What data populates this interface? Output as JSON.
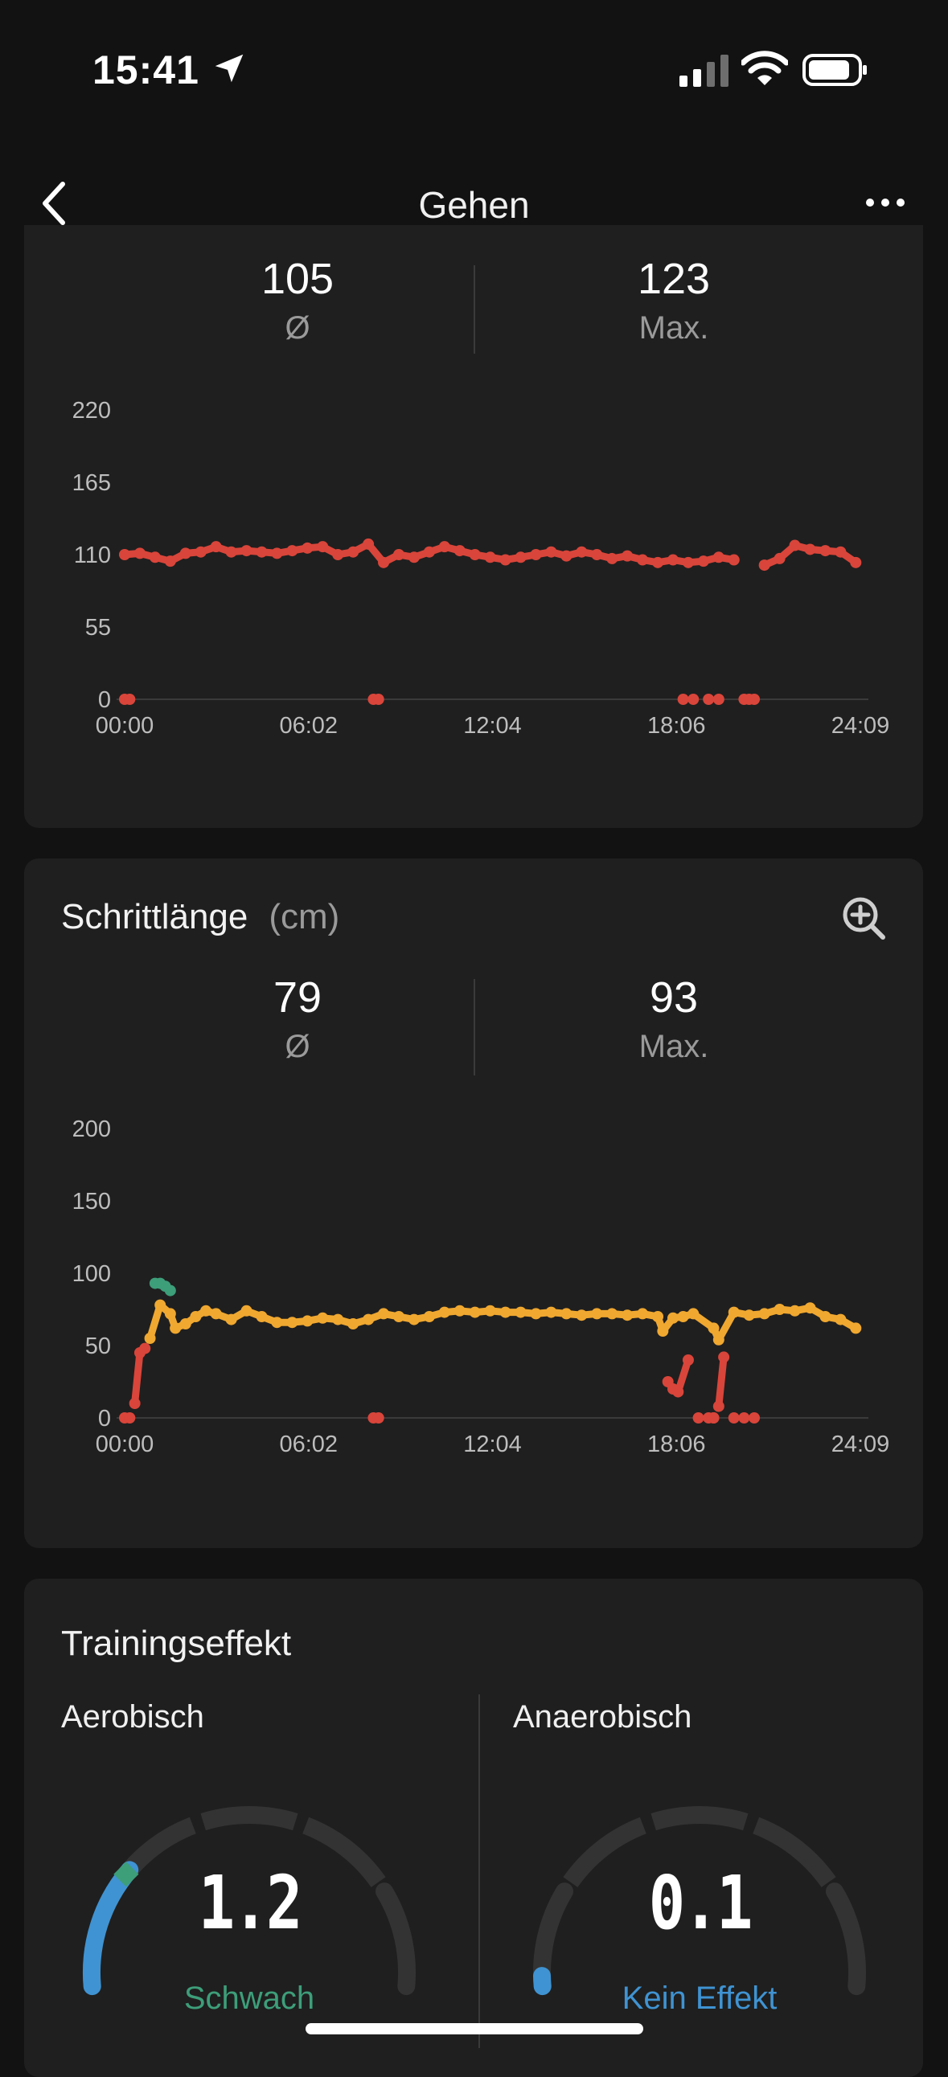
{
  "status_bar": {
    "time": "15:41"
  },
  "nav": {
    "title": "Gehen"
  },
  "cadence_card": {
    "avg_value": "105",
    "avg_label": "Ø",
    "max_value": "123",
    "max_label": "Max.",
    "chart_data": {
      "type": "scatter",
      "title": "",
      "x_ticks": [
        "00:00",
        "06:02",
        "12:04",
        "18:06",
        "24:09"
      ],
      "y_ticks": [
        "220",
        "165",
        "110",
        "55",
        "0"
      ],
      "ylim": [
        0,
        220
      ],
      "xlim_minutes": [
        0,
        1449
      ],
      "color": "#d9453a",
      "series": [
        {
          "values_x_min": [
            0,
            30,
            60,
            90,
            120,
            150,
            180,
            210,
            240,
            270,
            300,
            330,
            360,
            390,
            420,
            450,
            480,
            510,
            540,
            570,
            600,
            630,
            660,
            690,
            720,
            750,
            780,
            810,
            840,
            870,
            900,
            930,
            960,
            990,
            1020,
            1050,
            1080,
            1110,
            1140,
            1170,
            1200,
            1230,
            1260,
            1290,
            1320,
            1350,
            1380,
            1410,
            1440
          ],
          "values_y": [
            110,
            111,
            108,
            105,
            111,
            112,
            116,
            112,
            113,
            112,
            111,
            113,
            115,
            116,
            110,
            112,
            118,
            104,
            110,
            108,
            112,
            116,
            113,
            110,
            108,
            106,
            108,
            110,
            112,
            109,
            112,
            110,
            107,
            109,
            106,
            104,
            106,
            104,
            105,
            108,
            106,
            0,
            102,
            107,
            117,
            114,
            113,
            112,
            104
          ]
        },
        {
          "values_x_min": [
            0,
            10,
            490,
            500,
            1100,
            1120,
            1150,
            1170,
            1220,
            1240
          ],
          "values_y": [
            0,
            0,
            0,
            0,
            0,
            0,
            0,
            0,
            0,
            0
          ]
        }
      ]
    }
  },
  "stride_card": {
    "title": "Schrittlänge",
    "unit": "(cm)",
    "avg_value": "79",
    "avg_label": "Ø",
    "max_value": "93",
    "max_label": "Max.",
    "chart_data": {
      "type": "scatter",
      "title": "",
      "x_ticks": [
        "00:00",
        "06:02",
        "12:04",
        "18:06",
        "24:09"
      ],
      "y_ticks": [
        "200",
        "150",
        "100",
        "50",
        "0"
      ],
      "ylim": [
        0,
        200
      ],
      "xlim_minutes": [
        0,
        1449
      ],
      "colors": {
        "low": "#d9453a",
        "mid": "#f0a830",
        "high": "#3d9e7a"
      },
      "series": [
        {
          "name": "high",
          "values_x_min": [
            60,
            70,
            80,
            90
          ],
          "values_y": [
            93,
            93,
            91,
            88
          ]
        },
        {
          "name": "low",
          "values_x_min": [
            0,
            10,
            20,
            30,
            40,
            490,
            500,
            1070,
            1080,
            1090,
            1110,
            1130,
            1150,
            1160,
            1170,
            1180,
            1200,
            1220,
            1240,
            1160
          ],
          "values_y": [
            0,
            0,
            10,
            45,
            48,
            0,
            0,
            25,
            20,
            18,
            40,
            0,
            0,
            0,
            8,
            42,
            0,
            0,
            0,
            0
          ]
        },
        {
          "name": "mid",
          "values_x_min": [
            50,
            70,
            90,
            100,
            120,
            140,
            160,
            180,
            210,
            240,
            270,
            300,
            330,
            360,
            390,
            420,
            450,
            480,
            510,
            540,
            570,
            600,
            630,
            660,
            690,
            720,
            750,
            780,
            810,
            840,
            870,
            900,
            930,
            960,
            990,
            1020,
            1050,
            1060,
            1080,
            1100,
            1120,
            1160,
            1170,
            1200,
            1230,
            1260,
            1290,
            1320,
            1350,
            1380,
            1410,
            1440
          ],
          "values_y": [
            55,
            78,
            72,
            62,
            65,
            70,
            74,
            72,
            68,
            74,
            70,
            66,
            66,
            67,
            69,
            68,
            65,
            68,
            72,
            70,
            68,
            70,
            73,
            74,
            73,
            74,
            73,
            73,
            72,
            73,
            72,
            71,
            72,
            72,
            71,
            72,
            70,
            60,
            69,
            70,
            72,
            62,
            54,
            73,
            71,
            72,
            75,
            74,
            76,
            70,
            68,
            62
          ]
        }
      ]
    }
  },
  "training_card": {
    "title": "Trainingseffekt",
    "aerobic": {
      "label": "Aerobisch",
      "value": "1.2",
      "level": 1.2,
      "max": 5,
      "status": "Schwach",
      "status_color": "#3d9e7a",
      "fill_color": "#3f93d2",
      "marker_color": "#3d9e7a"
    },
    "anaerobic": {
      "label": "Anaerobisch",
      "value": "0.1",
      "level": 0.1,
      "max": 5,
      "status": "Kein Effekt",
      "status_color": "#3f93d2",
      "fill_color": "#3f93d2"
    }
  }
}
